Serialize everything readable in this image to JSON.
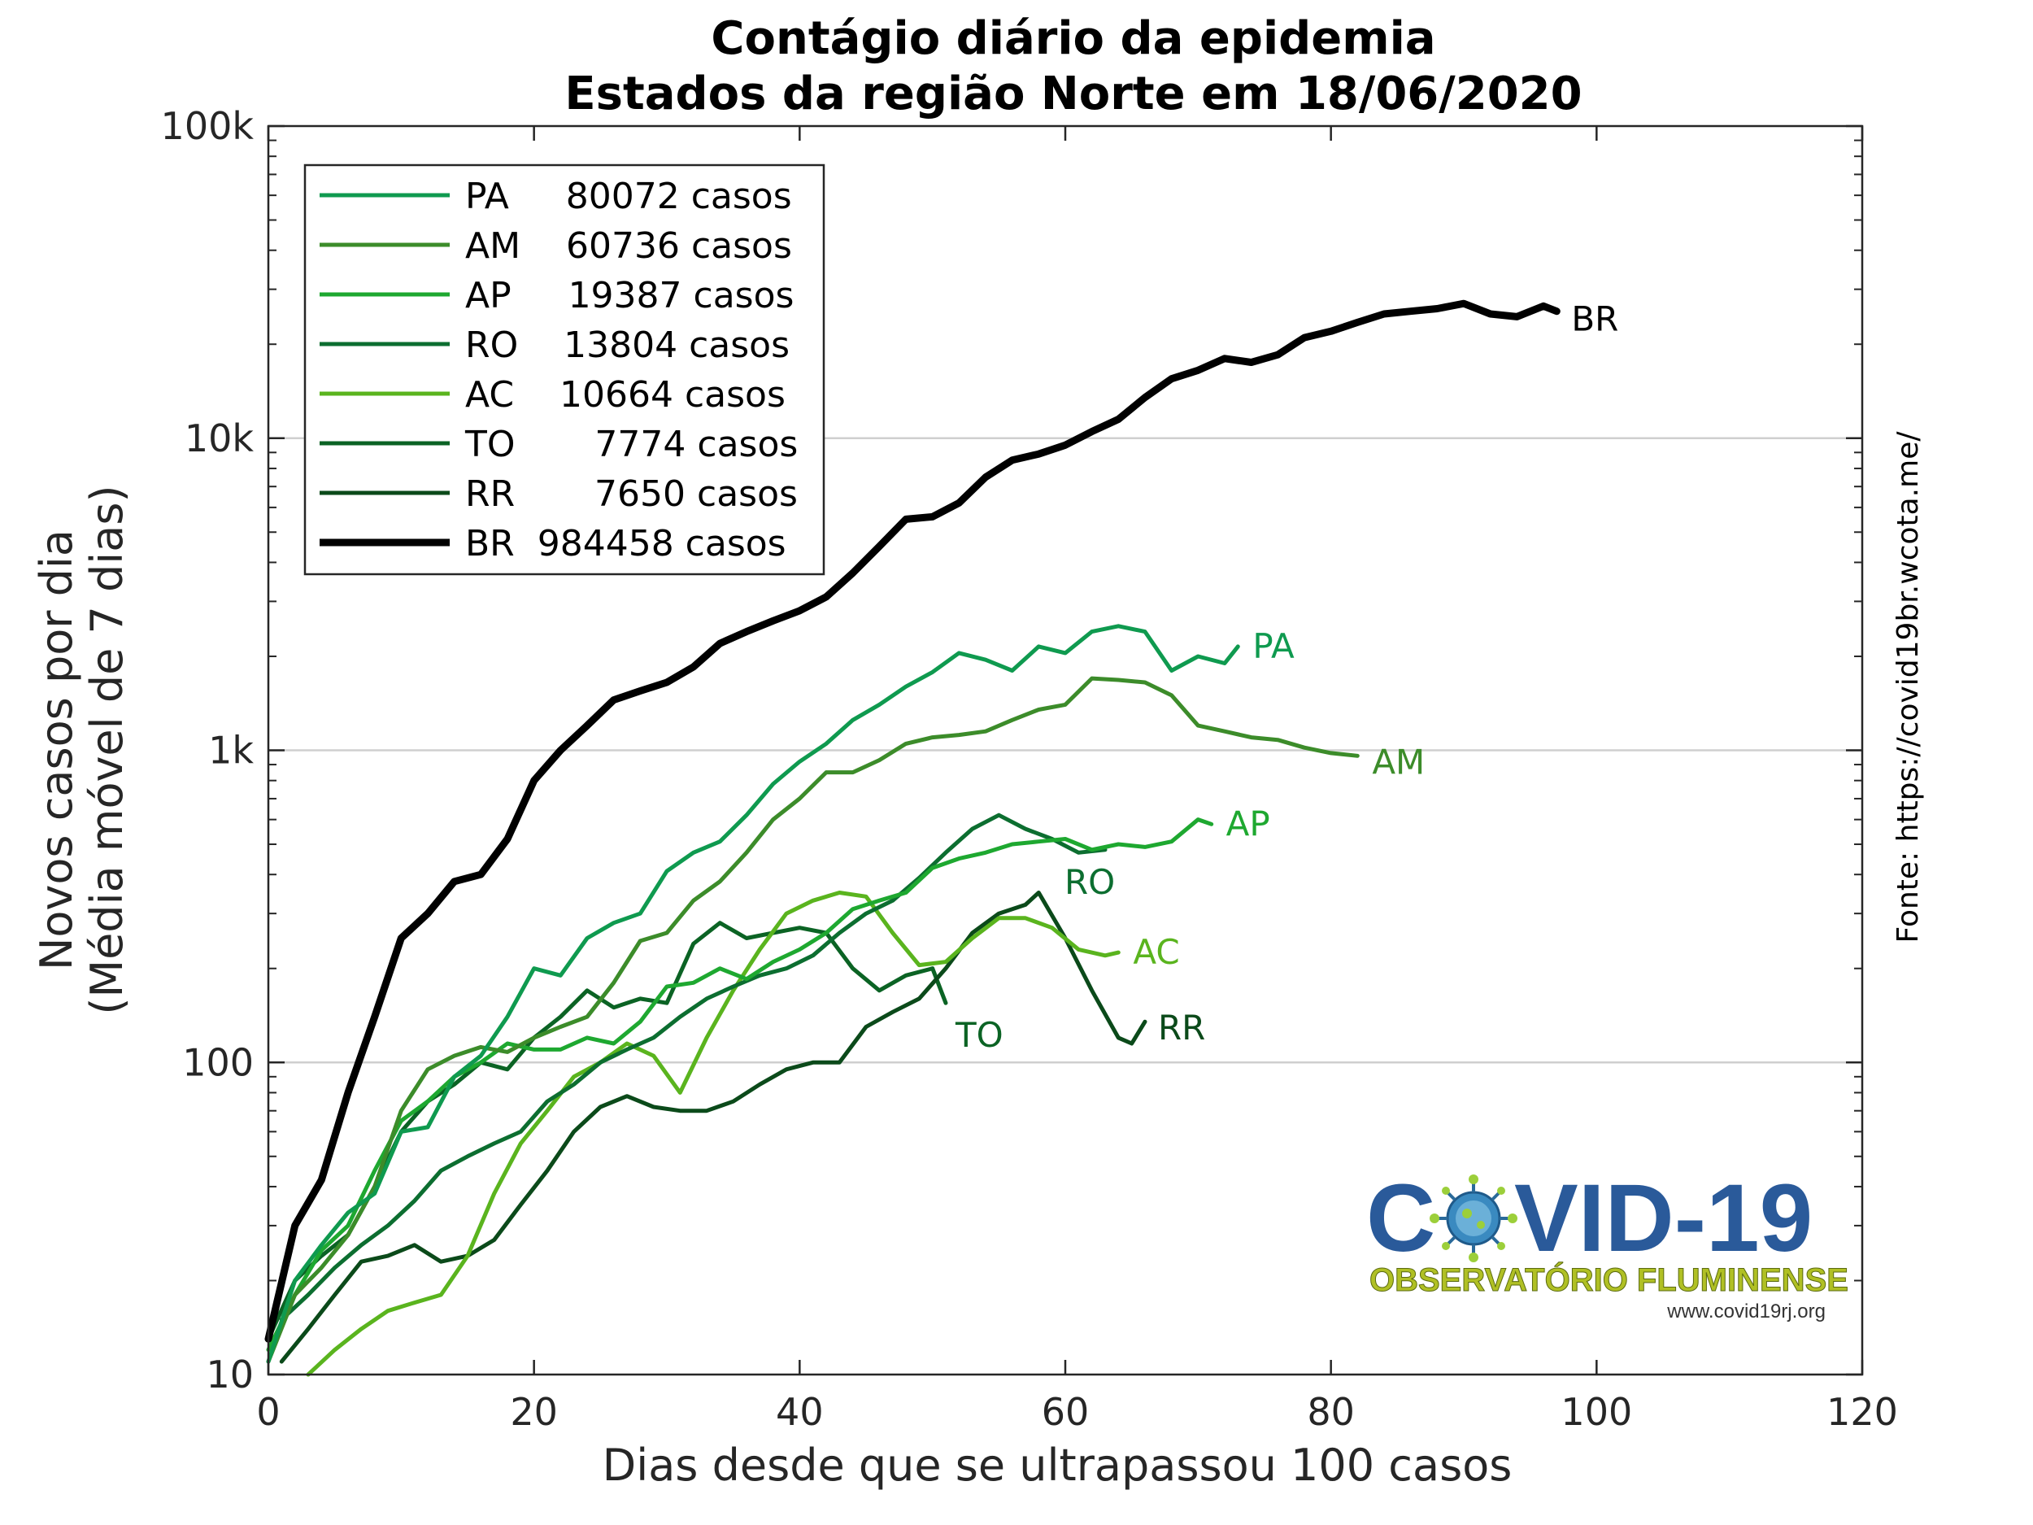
{
  "chart_data": {
    "type": "line",
    "title": "Contágio diário da epidemia",
    "subtitle": "Estados da região Norte em 18/06/2020",
    "xlabel": "Dias desde que se ultrapassou 100 casos",
    "ylabel_line1": "Novos casos por dia",
    "ylabel_line2": "(Média móvel de 7 dias)",
    "yscale": "log",
    "xlim": [
      0,
      120
    ],
    "ylim": [
      10,
      100000
    ],
    "xticks": [
      0,
      20,
      40,
      60,
      80,
      100,
      120
    ],
    "xtick_labels": [
      "0",
      "20",
      "40",
      "60",
      "80",
      "100",
      "120"
    ],
    "yticks": [
      10,
      100,
      1000,
      10000,
      100000
    ],
    "ytick_labels": [
      "10",
      "100",
      "1k",
      "10k",
      "100k"
    ],
    "grid": "horizontal major",
    "legend_position": "top-left",
    "source_text": "Fonte: https://covid19br.wcota.me/",
    "series": [
      {
        "name": "PA",
        "legend_label": "PA     80072 casos",
        "color": "#0f9a4f",
        "width": 5,
        "x": [
          0,
          2,
          4,
          6,
          8,
          10,
          12,
          14,
          16,
          18,
          20,
          22,
          24,
          26,
          28,
          30,
          32,
          34,
          36,
          38,
          40,
          42,
          44,
          46,
          48,
          50,
          52,
          54,
          56,
          58,
          60,
          62,
          64,
          66,
          68,
          70,
          72,
          73
        ],
        "y": [
          11,
          20,
          26,
          33,
          38,
          60,
          62,
          90,
          105,
          140,
          200,
          190,
          250,
          280,
          300,
          410,
          470,
          510,
          620,
          780,
          920,
          1050,
          1250,
          1400,
          1600,
          1780,
          2050,
          1950,
          1800,
          2150,
          2050,
          2400,
          2500,
          2400,
          1800,
          2000,
          1900,
          2150
        ]
      },
      {
        "name": "AM",
        "legend_label": "AM    60736 casos",
        "color": "#3c8c2a",
        "width": 5,
        "x": [
          0,
          2,
          4,
          6,
          8,
          10,
          12,
          14,
          16,
          18,
          20,
          22,
          24,
          26,
          28,
          30,
          32,
          34,
          36,
          38,
          40,
          42,
          44,
          46,
          48,
          50,
          52,
          54,
          56,
          58,
          60,
          62,
          64,
          66,
          68,
          70,
          72,
          74,
          76,
          78,
          80,
          82
        ],
        "y": [
          11,
          18,
          22,
          28,
          40,
          70,
          95,
          105,
          112,
          108,
          120,
          130,
          140,
          180,
          245,
          260,
          330,
          380,
          470,
          600,
          700,
          850,
          850,
          930,
          1050,
          1100,
          1120,
          1150,
          1250,
          1350,
          1400,
          1700,
          1680,
          1650,
          1500,
          1200,
          1150,
          1100,
          1080,
          1020,
          980,
          960
        ]
      },
      {
        "name": "AP",
        "legend_label": "AP     19387 casos",
        "color": "#1ea830",
        "width": 5,
        "x": [
          0,
          2,
          4,
          6,
          8,
          10,
          12,
          14,
          16,
          18,
          20,
          22,
          24,
          26,
          28,
          30,
          32,
          34,
          36,
          38,
          40,
          42,
          44,
          46,
          48,
          50,
          52,
          54,
          56,
          58,
          60,
          62,
          64,
          66,
          68,
          70,
          71
        ],
        "y": [
          12,
          18,
          25,
          30,
          45,
          65,
          75,
          90,
          100,
          115,
          110,
          110,
          120,
          115,
          135,
          175,
          180,
          200,
          185,
          210,
          230,
          260,
          310,
          330,
          350,
          420,
          450,
          470,
          500,
          510,
          520,
          480,
          500,
          490,
          510,
          600,
          580
        ]
      },
      {
        "name": "RO",
        "legend_label": "RO    13804 casos",
        "color": "#0c6e30",
        "width": 5,
        "x": [
          1,
          3,
          5,
          7,
          9,
          11,
          13,
          15,
          17,
          19,
          21,
          23,
          25,
          27,
          29,
          31,
          33,
          35,
          37,
          39,
          41,
          43,
          45,
          47,
          49,
          51,
          53,
          55,
          57,
          59,
          61,
          63
        ],
        "y": [
          15,
          18,
          22,
          26,
          30,
          36,
          45,
          50,
          55,
          60,
          75,
          85,
          100,
          110,
          120,
          140,
          160,
          175,
          190,
          200,
          220,
          260,
          300,
          330,
          390,
          470,
          560,
          620,
          560,
          520,
          470,
          480
        ]
      },
      {
        "name": "AC",
        "legend_label": "AC    10664 casos",
        "color": "#5ab41e",
        "width": 5,
        "x": [
          3,
          5,
          7,
          9,
          11,
          13,
          15,
          17,
          19,
          21,
          23,
          25,
          27,
          29,
          31,
          33,
          35,
          37,
          39,
          41,
          43,
          45,
          47,
          49,
          51,
          53,
          55,
          57,
          59,
          61,
          63,
          64
        ],
        "y": [
          10,
          12,
          14,
          16,
          17,
          18,
          24,
          38,
          55,
          70,
          90,
          100,
          115,
          105,
          80,
          120,
          170,
          230,
          300,
          330,
          350,
          340,
          260,
          205,
          210,
          250,
          290,
          290,
          270,
          230,
          220,
          225
        ]
      },
      {
        "name": "TO",
        "legend_label": "TO       7774 casos",
        "color": "#0b6324",
        "width": 5,
        "x": [
          0,
          2,
          4,
          6,
          8,
          10,
          12,
          14,
          16,
          18,
          20,
          22,
          24,
          26,
          28,
          30,
          32,
          34,
          36,
          38,
          40,
          42,
          44,
          46,
          48,
          50,
          51
        ],
        "y": [
          13,
          20,
          24,
          28,
          40,
          60,
          75,
          85,
          100,
          95,
          120,
          140,
          170,
          150,
          160,
          155,
          240,
          280,
          250,
          260,
          270,
          260,
          200,
          170,
          190,
          200,
          155
        ]
      },
      {
        "name": "RR",
        "legend_label": "RR       7650 casos",
        "color": "#0b4a1a",
        "width": 5,
        "x": [
          1,
          3,
          5,
          7,
          9,
          11,
          13,
          15,
          17,
          19,
          21,
          23,
          25,
          27,
          29,
          31,
          33,
          35,
          37,
          39,
          41,
          43,
          45,
          47,
          49,
          51,
          53,
          55,
          57,
          58,
          60,
          62,
          64,
          65,
          66
        ],
        "y": [
          11,
          14,
          18,
          23,
          24,
          26,
          23,
          24,
          27,
          35,
          45,
          60,
          72,
          78,
          72,
          70,
          70,
          75,
          85,
          95,
          100,
          100,
          130,
          145,
          160,
          200,
          260,
          300,
          320,
          350,
          250,
          170,
          120,
          115,
          135
        ]
      },
      {
        "name": "BR",
        "legend_label": "BR  984458 casos",
        "color": "#000000",
        "width": 9,
        "x": [
          0,
          2,
          4,
          6,
          8,
          10,
          12,
          14,
          16,
          18,
          20,
          22,
          24,
          26,
          28,
          30,
          32,
          34,
          36,
          38,
          40,
          42,
          44,
          46,
          48,
          50,
          52,
          54,
          56,
          58,
          60,
          62,
          64,
          66,
          68,
          70,
          72,
          74,
          76,
          78,
          80,
          82,
          84,
          86,
          88,
          90,
          92,
          94,
          96,
          97
        ],
        "y": [
          13,
          30,
          42,
          80,
          140,
          250,
          300,
          380,
          400,
          520,
          800,
          1000,
          1200,
          1450,
          1550,
          1650,
          1850,
          2200,
          2400,
          2600,
          2800,
          3100,
          3700,
          4500,
          5500,
          5600,
          6200,
          7500,
          8500,
          8900,
          9500,
          10500,
          11500,
          13500,
          15500,
          16500,
          18000,
          17500,
          18500,
          21000,
          22000,
          23500,
          25000,
          25500,
          26000,
          27000,
          25000,
          24500,
          26500,
          25500
        ]
      }
    ],
    "end_labels": [
      {
        "text": "PA",
        "series": "PA"
      },
      {
        "text": "AM",
        "series": "AM"
      },
      {
        "text": "AP",
        "series": "AP"
      },
      {
        "text": "RO",
        "series": "RO"
      },
      {
        "text": "AC",
        "series": "AC"
      },
      {
        "text": "TO",
        "series": "TO"
      },
      {
        "text": "RR",
        "series": "RR"
      },
      {
        "text": "BR",
        "series": "BR"
      }
    ]
  },
  "logo": {
    "title_left": "C",
    "title_right": "VID-19",
    "subtitle": "OBSERVATÓRIO FLUMINENSE",
    "url": "www.covid19rj.org",
    "virus_icon": "coronavirus-icon",
    "primary_color": "#2a5a9a",
    "secondary_color": "#b0c024"
  }
}
